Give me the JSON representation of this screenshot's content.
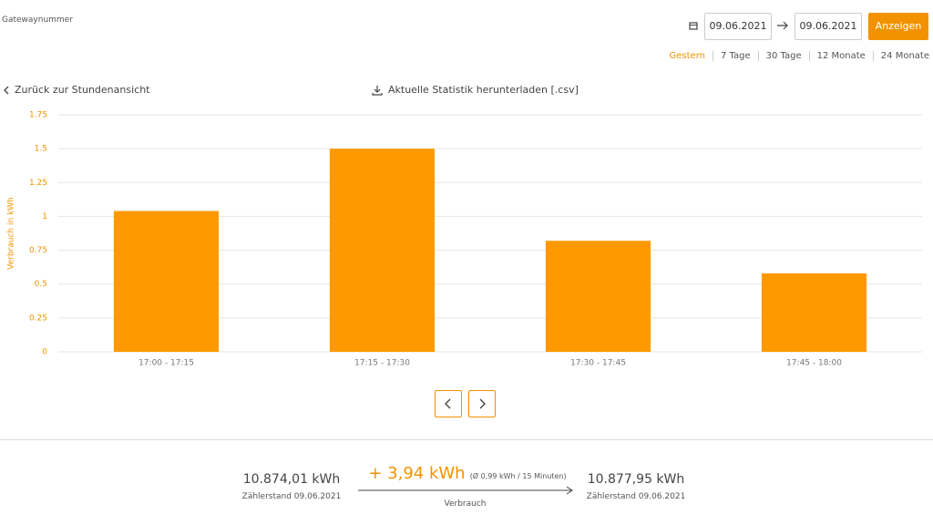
{
  "header": {
    "gateway_label": "Gatewaynummer",
    "date_from": "09.06.2021",
    "date_to": "09.06.2021",
    "button": "Anzeigen",
    "ranges": [
      "Gestern",
      "7 Tage",
      "30 Tage",
      "12 Monate",
      "24 Monate"
    ]
  },
  "links": {
    "back": "Zurück zur Stundenansicht",
    "download": "Aktuelle Statistik herunterladen [.csv]"
  },
  "chart_data": {
    "type": "bar",
    "ylabel": "Verbrauch in kWh",
    "categories": [
      "17:00 - 17:15",
      "17:15 - 17:30",
      "17:30 - 17:45",
      "17:45 - 18:00"
    ],
    "values": [
      1.04,
      1.5,
      0.82,
      0.58
    ],
    "color": "#ff9900",
    "ylim": [
      0,
      1.75
    ],
    "yticks": [
      0,
      0.25,
      0.5,
      0.75,
      1,
      1.25,
      1.5,
      1.75
    ],
    "grid": true
  },
  "summary": {
    "start_value": "10.874,01 kWh",
    "start_label": "Zählerstand 09.06.2021",
    "delta": "+ 3,94 kWh",
    "average": "(Ø 0,99 kWh / 15 Minuten)",
    "delta_label": "Verbrauch",
    "end_value": "10.877,95 kWh",
    "end_label": "Zählerstand 09.06.2021"
  }
}
